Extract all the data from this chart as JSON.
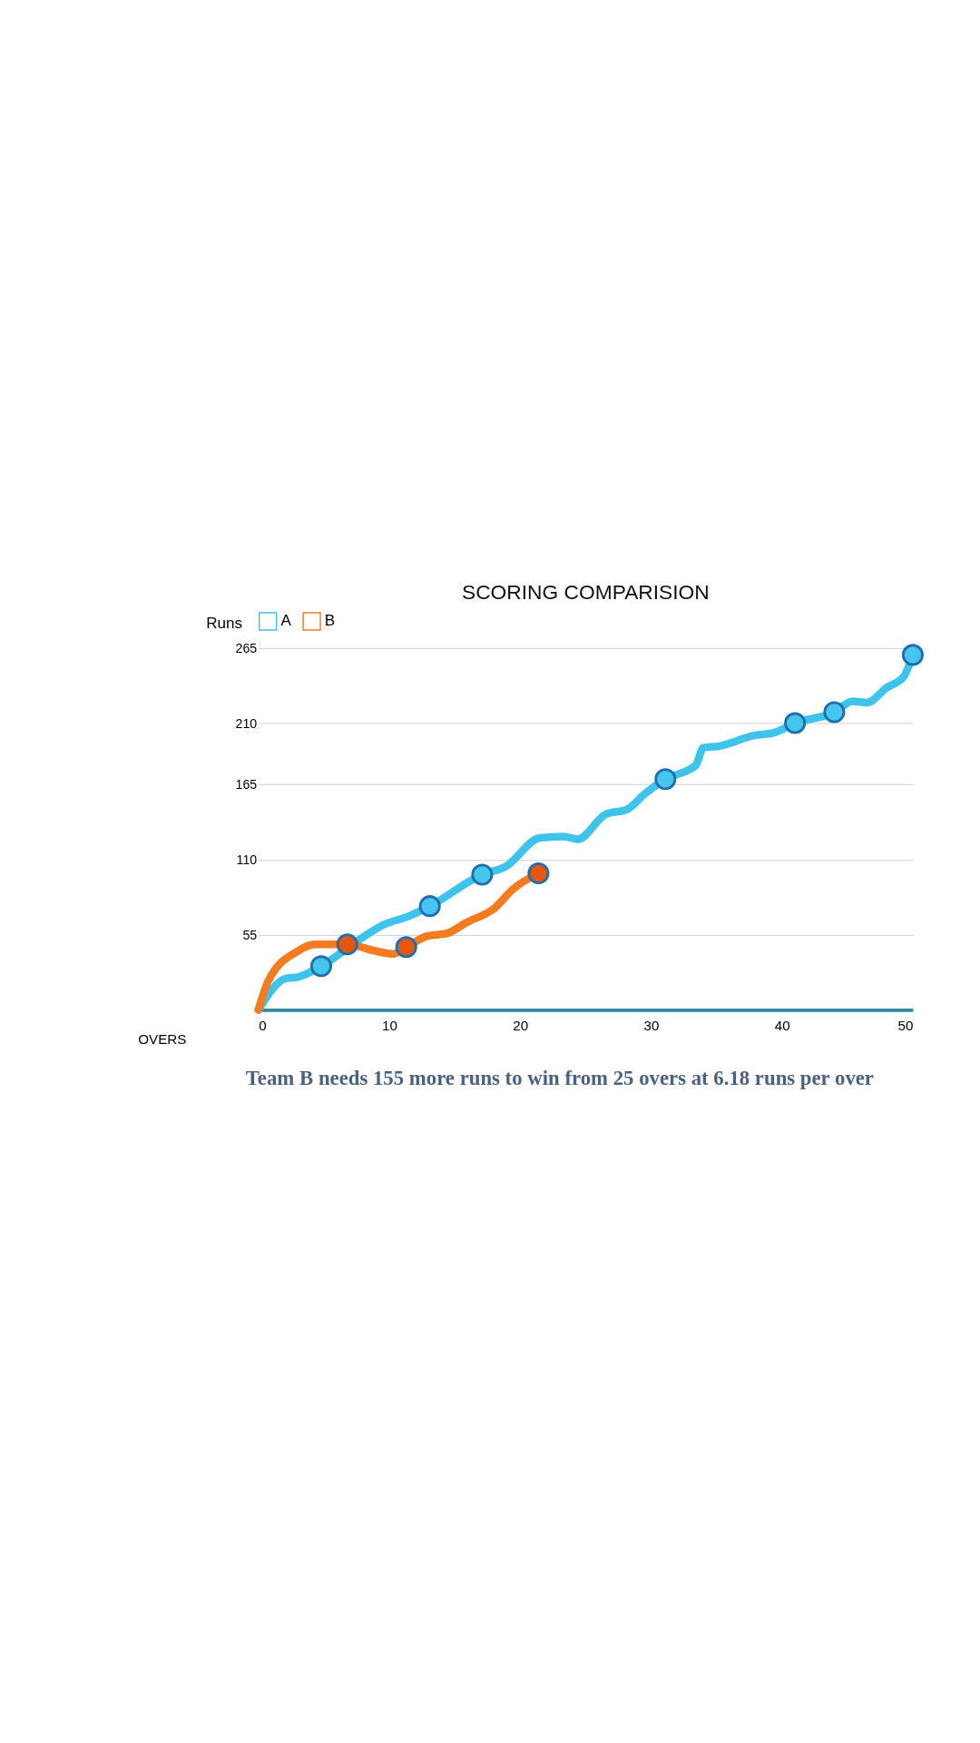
{
  "chart_data": {
    "type": "line",
    "title": "SCORING COMPARISION",
    "xlabel": "OVERS",
    "ylabel": "Runs",
    "xlim": [
      0,
      50
    ],
    "xticks": [
      0,
      10,
      20,
      30,
      40,
      50
    ],
    "ylim": [
      0,
      265
    ],
    "yticks": [
      55,
      110,
      165,
      210,
      265
    ],
    "grid": "y",
    "legend": "top",
    "line_style": "solid",
    "marker": "none",
    "series": [
      {
        "name": "A",
        "color": "#3ec3ea",
        "x": [
          0,
          2.1,
          3.0,
          4.8,
          7.8,
          9.5,
          11.6,
          13.1,
          17.1,
          18.9,
          21.5,
          23.3,
          24.4,
          26.5,
          28.2,
          29.5,
          31.1,
          33.4,
          34.0,
          35.1,
          37.9,
          39.4,
          41.0,
          44.0,
          45.4,
          46.5,
          48.0,
          49.3,
          50
        ],
        "values": [
          0,
          23,
          24,
          32,
          52,
          62,
          69,
          76,
          99,
          105,
          126,
          127,
          125,
          143,
          147,
          158,
          169,
          179,
          192,
          193,
          201,
          203,
          210,
          218,
          226,
          225,
          236,
          244,
          260
        ]
      },
      {
        "type": "scatter",
        "marker": "circle",
        "color": "#45c6ec",
        "x": [
          4.8,
          13.1,
          17.1,
          31.1,
          41.0,
          44.0,
          50
        ],
        "values": [
          32,
          76,
          99,
          169,
          210,
          218,
          260
        ]
      },
      {
        "name": "B",
        "color": "#f47b20",
        "x": [
          0,
          0.8,
          3.0,
          4.3,
          6.8,
          9.0,
          10.3,
          11.3,
          12.9,
          14.4,
          15.9,
          18.1,
          19.4,
          21.4
        ],
        "values": [
          0,
          22,
          43,
          48,
          48,
          43,
          41,
          46,
          54,
          56,
          64,
          75,
          88,
          100
        ]
      },
      {
        "type": "scatter",
        "marker": "circle",
        "color": "#e8560a",
        "x": [
          6.8,
          11.3,
          21.4
        ],
        "values": [
          48,
          46,
          100
        ]
      }
    ],
    "annotations": [
      "Team B needs 155 more runs to win from 25 overs at 6.18 runs per over"
    ]
  }
}
